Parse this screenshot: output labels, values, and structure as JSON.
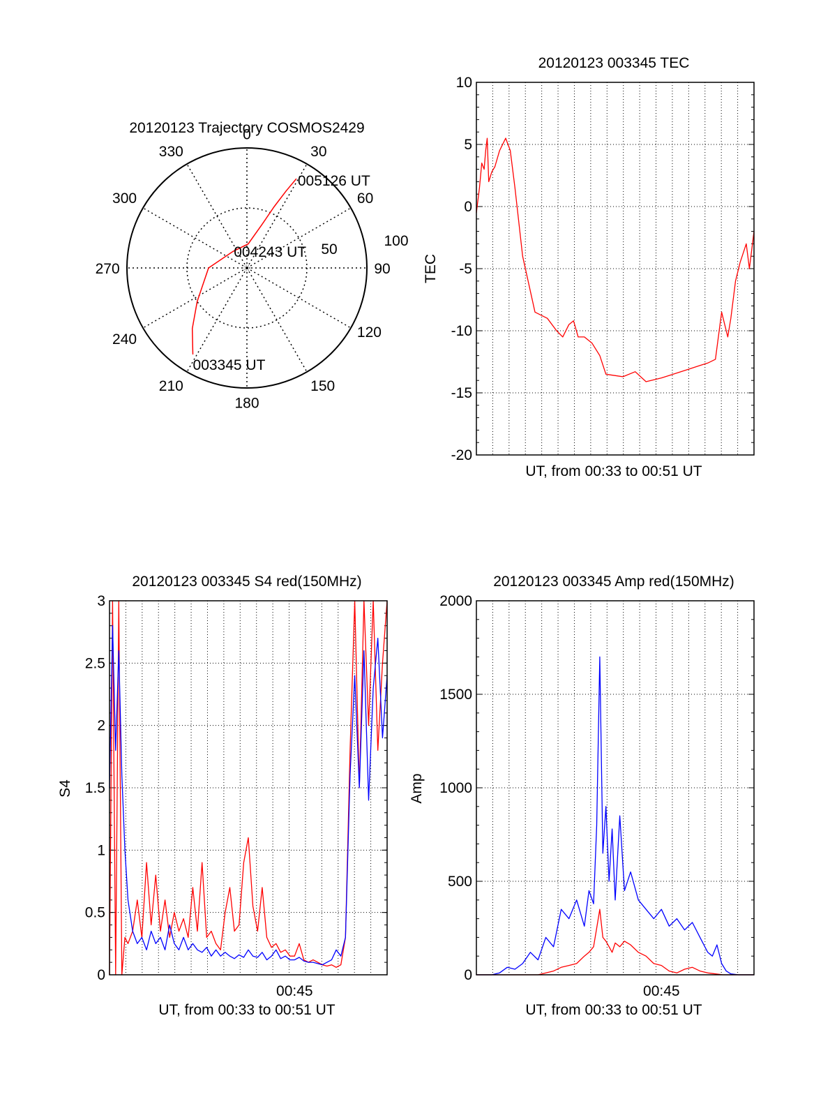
{
  "colors": {
    "red": "#ff0000",
    "blue": "#0000ff",
    "axis": "#000000",
    "grid": "#000000"
  },
  "chart_data": [
    {
      "id": "polar",
      "type": "polar",
      "title": "20120123 Trajectory COSMOS2429",
      "azimuth_labels": [
        "0",
        "30",
        "60",
        "90",
        "120",
        "150",
        "180",
        "210",
        "240",
        "270",
        "300",
        "330"
      ],
      "radius_labels": [
        "50",
        "100"
      ],
      "grid": true,
      "trajectory": {
        "color": "red",
        "points": [
          {
            "az": 212,
            "r": 85
          },
          {
            "az": 222,
            "r": 68
          },
          {
            "az": 236,
            "r": 50
          },
          {
            "az": 270,
            "r": 32
          },
          {
            "az": 320,
            "r": 18
          },
          {
            "az": 3,
            "r": 20
          },
          {
            "az": 19,
            "r": 38
          },
          {
            "az": 24,
            "r": 56
          },
          {
            "az": 27,
            "r": 72
          },
          {
            "az": 29,
            "r": 85
          }
        ]
      },
      "annotations": [
        {
          "text": "005126 UT",
          "az": 29,
          "r": 85
        },
        {
          "text": "004243 UT",
          "az": 90,
          "r": 10
        },
        {
          "text": "003345 UT",
          "az": 212,
          "r": 85
        }
      ]
    },
    {
      "id": "tec",
      "type": "line",
      "title": "20120123 003345 TEC",
      "xlabel": "UT, from 00:33 to 00:51 UT",
      "ylabel": "TEC",
      "ylim": [
        -20,
        10
      ],
      "yticks": [
        "10",
        "5",
        "0",
        "-5",
        "-10",
        "-15",
        "-20"
      ],
      "xlim": [
        0,
        18
      ],
      "grid": true,
      "series": [
        {
          "color": "red",
          "x": [
            0.0,
            0.1,
            0.2,
            0.35,
            0.5,
            0.6,
            0.7,
            0.8,
            1.0,
            1.2,
            1.5,
            1.9,
            2.2,
            2.5,
            3.0,
            3.8,
            4.6,
            5.2,
            5.6,
            6.0,
            6.3,
            6.6,
            7.0,
            7.5,
            8.0,
            8.4,
            9.5,
            10.3,
            11.0,
            12.0,
            12.5,
            13.5,
            14.5,
            15.0,
            15.5,
            15.9,
            16.3,
            16.5,
            16.8,
            17.1,
            17.5,
            17.7,
            18.0
          ],
          "y": [
            -0.5,
            0.5,
            1.5,
            3.5,
            3.0,
            4.5,
            5.5,
            2.0,
            2.8,
            3.2,
            4.5,
            5.5,
            4.5,
            1.5,
            -4.0,
            -8.5,
            -9.0,
            -10.0,
            -10.5,
            -9.5,
            -9.2,
            -10.5,
            -10.5,
            -11.0,
            -12.0,
            -13.5,
            -13.7,
            -13.3,
            -14.1,
            -13.8,
            -13.6,
            -13.2,
            -12.8,
            -12.6,
            -12.3,
            -8.5,
            -10.5,
            -9.0,
            -6.0,
            -4.5,
            -3.0,
            -5.0,
            -2.0
          ]
        }
      ]
    },
    {
      "id": "s4",
      "type": "line",
      "title": "20120123 003345 S4 red(150MHz)",
      "xlabel": "UT, from 00:33 to 00:51 UT",
      "ylabel": "S4",
      "ylim": [
        0,
        3
      ],
      "yticks": [
        "3",
        "2.5",
        "2",
        "1.5",
        "1",
        "0.5",
        "0"
      ],
      "xlim": [
        0,
        18
      ],
      "xticks": [
        {
          "x": 12,
          "label": "00:45"
        }
      ],
      "grid": true,
      "series": [
        {
          "color": "red",
          "x": [
            0.0,
            0.2,
            0.4,
            0.6,
            0.8,
            1.0,
            1.2,
            1.5,
            1.8,
            2.1,
            2.4,
            2.7,
            3.0,
            3.3,
            3.6,
            3.9,
            4.2,
            4.5,
            4.8,
            5.1,
            5.4,
            5.7,
            6.0,
            6.3,
            6.6,
            6.9,
            7.2,
            7.5,
            7.8,
            8.1,
            8.4,
            8.7,
            9.0,
            9.3,
            9.6,
            9.9,
            10.2,
            10.5,
            10.8,
            11.1,
            11.4,
            11.7,
            12.0,
            12.3,
            12.6,
            12.9,
            13.2,
            13.5,
            13.8,
            14.1,
            14.4,
            14.7,
            15.0,
            15.3,
            15.6,
            15.9,
            16.2,
            16.5,
            16.8,
            17.1,
            17.4,
            17.7,
            18.0
          ],
          "y": [
            0.0,
            3.0,
            0.0,
            3.0,
            0.0,
            0.3,
            0.25,
            0.35,
            0.6,
            0.3,
            0.9,
            0.4,
            0.8,
            0.35,
            0.6,
            0.3,
            0.5,
            0.35,
            0.45,
            0.3,
            0.7,
            0.35,
            0.9,
            0.3,
            0.35,
            0.25,
            0.2,
            0.5,
            0.7,
            0.35,
            0.4,
            0.9,
            1.1,
            0.55,
            0.35,
            0.7,
            0.3,
            0.22,
            0.25,
            0.18,
            0.2,
            0.15,
            0.15,
            0.25,
            0.12,
            0.1,
            0.12,
            0.1,
            0.08,
            0.07,
            0.08,
            0.06,
            0.08,
            0.3,
            1.8,
            3.0,
            1.5,
            3.0,
            2.0,
            3.0,
            1.8,
            2.5,
            3.0
          ]
        },
        {
          "color": "blue",
          "x": [
            0.0,
            0.2,
            0.4,
            0.6,
            0.8,
            1.0,
            1.2,
            1.5,
            1.8,
            2.1,
            2.4,
            2.7,
            3.0,
            3.3,
            3.6,
            3.9,
            4.2,
            4.5,
            4.8,
            5.1,
            5.4,
            5.7,
            6.0,
            6.3,
            6.6,
            6.9,
            7.2,
            7.5,
            7.8,
            8.1,
            8.4,
            8.7,
            9.0,
            9.3,
            9.6,
            9.9,
            10.2,
            10.5,
            10.8,
            11.1,
            11.4,
            11.7,
            12.0,
            12.3,
            12.6,
            12.9,
            13.2,
            13.5,
            13.8,
            14.1,
            14.4,
            14.7,
            15.0,
            15.3,
            15.6,
            15.9,
            16.2,
            16.5,
            16.8,
            17.1,
            17.4,
            17.7,
            18.0
          ],
          "y": [
            1.5,
            2.8,
            1.8,
            2.6,
            1.6,
            1.0,
            0.6,
            0.35,
            0.25,
            0.3,
            0.2,
            0.35,
            0.25,
            0.3,
            0.2,
            0.4,
            0.25,
            0.2,
            0.3,
            0.2,
            0.25,
            0.2,
            0.18,
            0.22,
            0.15,
            0.2,
            0.15,
            0.18,
            0.15,
            0.13,
            0.16,
            0.14,
            0.2,
            0.15,
            0.14,
            0.18,
            0.12,
            0.15,
            0.2,
            0.13,
            0.15,
            0.12,
            0.12,
            0.14,
            0.11,
            0.1,
            0.1,
            0.09,
            0.08,
            0.1,
            0.12,
            0.2,
            0.15,
            0.3,
            1.6,
            2.4,
            1.5,
            2.6,
            1.4,
            2.3,
            2.7,
            1.9,
            2.4
          ]
        }
      ]
    },
    {
      "id": "amp",
      "type": "line",
      "title": "20120123 003345 Amp red(150MHz)",
      "xlabel": "UT, from 00:33 to 00:51 UT",
      "ylabel": "Amp",
      "ylim": [
        0,
        2000
      ],
      "yticks": [
        "2000",
        "1500",
        "1000",
        "500",
        "0"
      ],
      "xlim": [
        0,
        18
      ],
      "xticks": [
        {
          "x": 12,
          "label": "00:45"
        }
      ],
      "grid": true,
      "series": [
        {
          "color": "blue",
          "x": [
            0.0,
            1.0,
            1.5,
            2.0,
            2.5,
            3.0,
            3.5,
            4.0,
            4.5,
            5.0,
            5.5,
            6.0,
            6.5,
            7.0,
            7.3,
            7.6,
            7.8,
            8.0,
            8.2,
            8.4,
            8.6,
            8.8,
            9.0,
            9.3,
            9.6,
            10.0,
            10.5,
            11.0,
            11.5,
            12.0,
            12.5,
            13.0,
            13.5,
            14.0,
            14.5,
            15.0,
            15.3,
            15.6,
            15.9,
            16.2,
            16.5,
            17.0,
            18.0
          ],
          "y": [
            0,
            0,
            10,
            40,
            30,
            60,
            120,
            80,
            200,
            150,
            350,
            300,
            400,
            260,
            450,
            380,
            800,
            1700,
            650,
            900,
            500,
            780,
            400,
            850,
            450,
            550,
            400,
            350,
            300,
            350,
            260,
            300,
            240,
            280,
            200,
            120,
            100,
            160,
            60,
            20,
            5,
            0,
            0
          ]
        },
        {
          "color": "red",
          "x": [
            0.0,
            3.0,
            4.0,
            5.0,
            5.5,
            6.0,
            6.5,
            7.0,
            7.3,
            7.6,
            7.8,
            8.0,
            8.2,
            8.4,
            8.6,
            8.8,
            9.0,
            9.3,
            9.6,
            10.0,
            10.5,
            11.0,
            11.5,
            12.0,
            12.5,
            13.0,
            13.5,
            14.0,
            14.5,
            15.0,
            15.5,
            16.0,
            18.0
          ],
          "y": [
            0,
            0,
            0,
            20,
            40,
            50,
            60,
            100,
            120,
            150,
            250,
            350,
            200,
            180,
            150,
            120,
            170,
            150,
            180,
            160,
            120,
            100,
            60,
            50,
            20,
            10,
            30,
            40,
            20,
            10,
            5,
            0,
            0
          ]
        }
      ]
    }
  ]
}
